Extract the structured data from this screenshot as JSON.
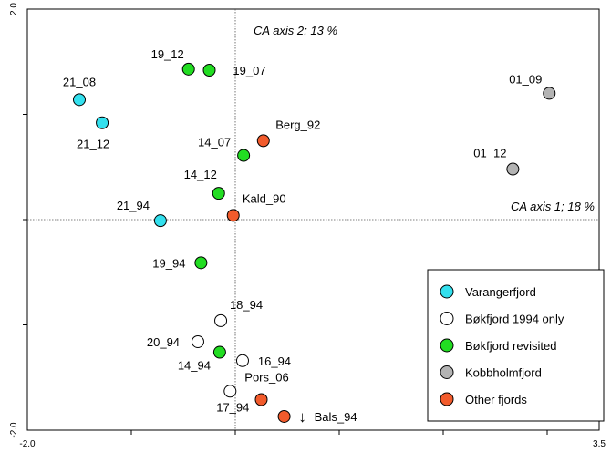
{
  "chart_data": {
    "type": "scatter",
    "title": "",
    "x_axis": {
      "range": [
        -2.0,
        3.5
      ],
      "tick_labels": [
        "-2.0",
        "3.5"
      ],
      "label": "CA axis 1; 18 %"
    },
    "y_axis": {
      "range": [
        -2.0,
        2.0
      ],
      "tick_labels": [
        "2.0",
        "-2.0"
      ],
      "label": "CA axis 2; 13 %"
    },
    "grid": false,
    "legend_position": "bottom-right",
    "colors": {
      "Varangerfjord": "#33e0ee",
      "Bøkfjord 1994 only": "#ffffff",
      "Bøkfjord revisited": "#22dd22",
      "Kobbholmfjord": "#b3b3b3",
      "Other fjords": "#f25b2c"
    },
    "series": [
      {
        "name": "Varangerfjord",
        "points": [
          {
            "label": "21_08",
            "x": -1.5,
            "y": 1.14
          },
          {
            "label": "21_12",
            "x": -1.28,
            "y": 0.92
          },
          {
            "label": "21_94",
            "x": -0.72,
            "y": -0.01
          }
        ]
      },
      {
        "name": "Bøkfjord 1994 only",
        "points": [
          {
            "label": "20_94",
            "x": -0.36,
            "y": -1.16
          },
          {
            "label": "18_94",
            "x": -0.14,
            "y": -0.96
          },
          {
            "label": "16_94",
            "x": 0.07,
            "y": -1.34
          },
          {
            "label": "17_94",
            "x": -0.05,
            "y": -1.63
          }
        ]
      },
      {
        "name": "Bøkfjord revisited",
        "points": [
          {
            "label": "19_12",
            "x": -0.45,
            "y": 1.43
          },
          {
            "label": "19_07",
            "x": -0.25,
            "y": 1.42
          },
          {
            "label": "14_07",
            "x": 0.08,
            "y": 0.61
          },
          {
            "label": "14_12",
            "x": -0.16,
            "y": 0.25
          },
          {
            "label": "19_94",
            "x": -0.33,
            "y": -0.41
          },
          {
            "label": "14_94",
            "x": -0.15,
            "y": -1.26
          }
        ]
      },
      {
        "name": "Kobbholmfjord",
        "points": [
          {
            "label": "01_09",
            "x": 3.02,
            "y": 1.2
          },
          {
            "label": "01_12",
            "x": 2.67,
            "y": 0.48
          }
        ]
      },
      {
        "name": "Other fjords",
        "points": [
          {
            "label": "Berg_92",
            "x": 0.27,
            "y": 0.75
          },
          {
            "label": "Kald_90",
            "x": -0.02,
            "y": 0.04
          },
          {
            "label": "Pors_06",
            "x": 0.25,
            "y": -1.71
          },
          {
            "label": "Bals_94",
            "x": 0.47,
            "y": -1.87
          }
        ]
      }
    ],
    "annotations": [
      {
        "text": "↓",
        "near": "Bals_94"
      }
    ]
  }
}
